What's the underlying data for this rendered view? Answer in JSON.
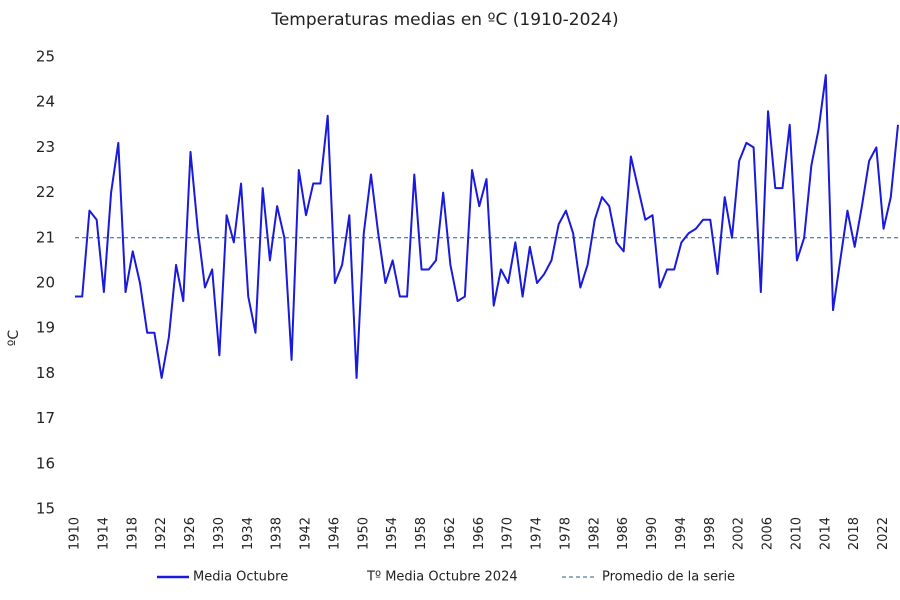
{
  "chart_data": {
    "type": "line",
    "title": "Temperaturas medias en ºC (1910-2024)",
    "y_label": "ºC",
    "x": [
      1910,
      1911,
      1912,
      1913,
      1914,
      1915,
      1916,
      1917,
      1918,
      1919,
      1920,
      1921,
      1922,
      1923,
      1924,
      1925,
      1926,
      1927,
      1928,
      1929,
      1930,
      1931,
      1932,
      1933,
      1934,
      1935,
      1936,
      1937,
      1938,
      1939,
      1940,
      1941,
      1942,
      1943,
      1944,
      1945,
      1946,
      1947,
      1948,
      1949,
      1950,
      1951,
      1952,
      1953,
      1954,
      1955,
      1956,
      1957,
      1958,
      1959,
      1960,
      1961,
      1962,
      1963,
      1964,
      1965,
      1966,
      1967,
      1968,
      1969,
      1970,
      1971,
      1972,
      1973,
      1974,
      1975,
      1976,
      1977,
      1978,
      1979,
      1980,
      1981,
      1982,
      1983,
      1984,
      1985,
      1986,
      1987,
      1988,
      1989,
      1990,
      1991,
      1992,
      1993,
      1994,
      1995,
      1996,
      1997,
      1998,
      1999,
      2000,
      2001,
      2002,
      2003,
      2004,
      2005,
      2006,
      2007,
      2008,
      2009,
      2010,
      2011,
      2012,
      2013,
      2014,
      2015,
      2016,
      2017,
      2018,
      2019,
      2020,
      2021,
      2022,
      2023,
      2024
    ],
    "series": [
      {
        "name": "Media Octubre",
        "color": "#1a1adc",
        "values": [
          19.7,
          19.7,
          21.6,
          21.4,
          19.8,
          22.0,
          23.1,
          19.8,
          20.7,
          20.0,
          18.9,
          18.9,
          17.9,
          18.8,
          20.4,
          19.6,
          22.9,
          21.2,
          19.9,
          20.3,
          18.4,
          21.5,
          20.9,
          22.2,
          19.7,
          18.9,
          22.1,
          20.5,
          21.7,
          21.0,
          18.3,
          22.5,
          21.5,
          22.2,
          22.2,
          23.7,
          20.0,
          20.4,
          21.5,
          17.9,
          21.1,
          22.4,
          21.1,
          20.0,
          20.5,
          19.7,
          19.7,
          22.4,
          20.3,
          20.3,
          20.5,
          22.0,
          20.4,
          19.6,
          19.7,
          22.5,
          21.7,
          22.3,
          19.5,
          20.3,
          20.0,
          20.9,
          19.7,
          20.8,
          20.0,
          20.2,
          20.5,
          21.3,
          21.6,
          21.1,
          19.9,
          20.4,
          21.4,
          21.9,
          21.7,
          20.9,
          20.7,
          22.8,
          22.1,
          21.4,
          21.5,
          19.9,
          20.3,
          20.3,
          20.9,
          21.1,
          21.2,
          21.4,
          21.4,
          20.2,
          21.9,
          21.0,
          22.7,
          23.1,
          23.0,
          19.8,
          23.8,
          22.1,
          22.1,
          23.5,
          20.5,
          21.0,
          22.6,
          23.4,
          24.6,
          19.4,
          20.5,
          21.6,
          20.8,
          21.7,
          22.7,
          23.0,
          21.2,
          21.9,
          23.5
        ]
      }
    ],
    "reference_lines": [
      {
        "name": "Promedio de la serie",
        "value": 21,
        "color": "#2a5f8a",
        "dashed": true
      }
    ],
    "other_legend_entries": [
      "Tº Media Octubre 2024"
    ],
    "xlim": [
      1910,
      2024
    ],
    "xticks": [
      1910,
      1914,
      1918,
      1922,
      1926,
      1930,
      1934,
      1938,
      1942,
      1946,
      1950,
      1954,
      1958,
      1962,
      1966,
      1970,
      1974,
      1978,
      1982,
      1986,
      1990,
      1994,
      1998,
      2002,
      2006,
      2010,
      2014,
      2018,
      2022
    ],
    "ylim": [
      15,
      25
    ],
    "yticks": [
      15,
      16,
      17,
      18,
      19,
      20,
      21,
      22,
      23,
      24,
      25
    ],
    "grid": false
  }
}
